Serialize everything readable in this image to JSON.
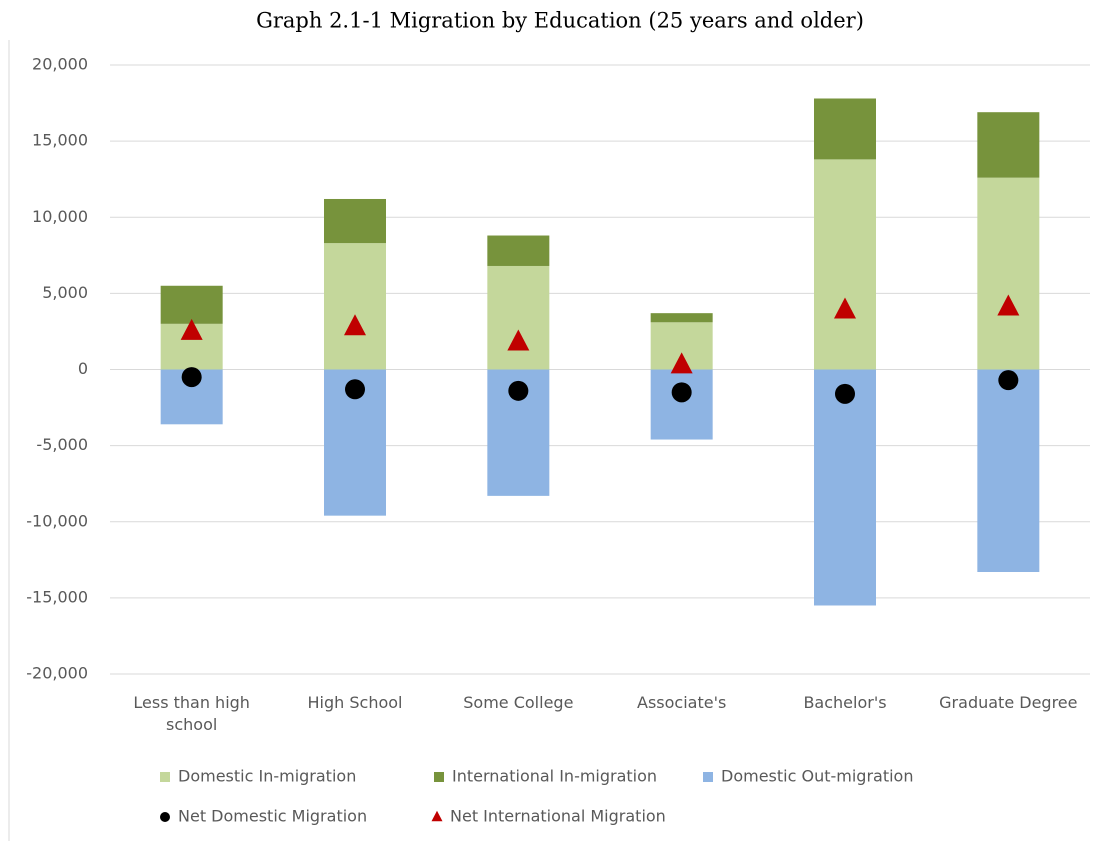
{
  "chart_data": {
    "type": "bar",
    "title": "Graph 2.1-1 Migration by Education (25 years and older)",
    "categories": [
      "Less than high school",
      "High School",
      "Some College",
      "Associate's",
      "Bachelor's",
      "Graduate Degree"
    ],
    "series": [
      {
        "name": "Domestic In-migration",
        "type": "bar",
        "color": "#c4d79b",
        "values": [
          3000,
          8300,
          6800,
          3100,
          13800,
          12600
        ]
      },
      {
        "name": "International In-migration",
        "type": "bar",
        "color": "#77933c",
        "values": [
          2500,
          2900,
          2000,
          600,
          4000,
          4300
        ]
      },
      {
        "name": "Domestic Out-migration",
        "type": "bar",
        "color": "#8eb4e3",
        "values": [
          -3600,
          -9600,
          -8300,
          -4600,
          -15500,
          -13300
        ]
      },
      {
        "name": "Net Domestic Migration",
        "type": "scatter",
        "marker": "circle",
        "color": "#000000",
        "values": [
          -500,
          -1300,
          -1400,
          -1500,
          -1600,
          -700
        ]
      },
      {
        "name": "Net International Migration",
        "type": "scatter",
        "marker": "triangle",
        "color": "#c00000",
        "values": [
          2500,
          2800,
          1800,
          300,
          3900,
          4100
        ]
      }
    ],
    "ylim": [
      -20000,
      20000
    ],
    "yticks": [
      {
        "value": -20000,
        "label": "-20,000"
      },
      {
        "value": -15000,
        "label": "-15,000"
      },
      {
        "value": -10000,
        "label": "-10,000"
      },
      {
        "value": -5000,
        "label": "-5,000"
      },
      0,
      {
        "value": 5000,
        "label": "5,000"
      },
      {
        "value": 10000,
        "label": "10,000"
      },
      {
        "value": 15000,
        "label": "15,000"
      },
      {
        "value": 20000,
        "label": "20,000"
      }
    ],
    "grid": true
  }
}
